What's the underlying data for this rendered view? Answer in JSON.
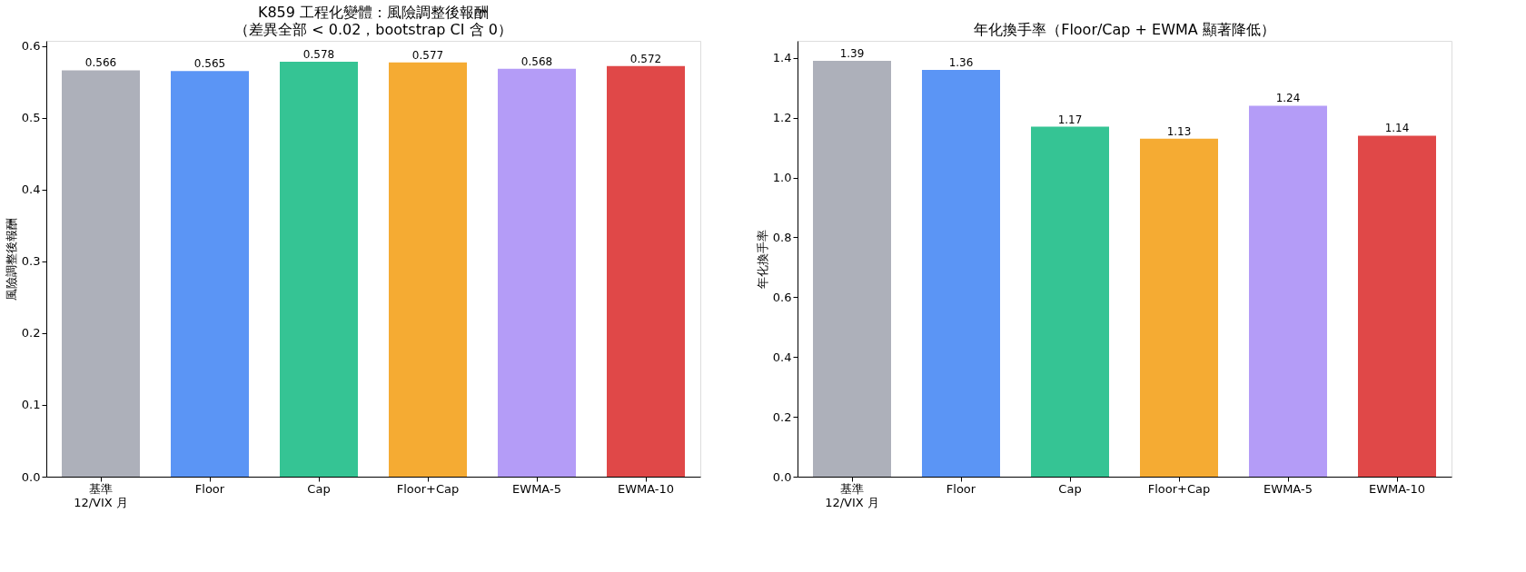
{
  "chart_data": [
    {
      "type": "bar",
      "title": "K859 工程化變體：風險調整後報酬",
      "subtitle": "（差異全部 < 0.02，bootstrap CI 含 0）",
      "ylabel": "風險調整後報酬",
      "categories": [
        "基準\n12/VIX 月",
        "Floor",
        "Cap",
        "Floor+Cap",
        "EWMA-5",
        "EWMA-10"
      ],
      "values": [
        0.566,
        0.565,
        0.578,
        0.577,
        0.568,
        0.572
      ],
      "colors": [
        "#adb0ba",
        "#5b95f5",
        "#35c494",
        "#f5ab33",
        "#b49cf7",
        "#e04848"
      ],
      "ylim": [
        0,
        0.607
      ],
      "yticks": [
        {
          "value": 0,
          "label": "0.0"
        },
        {
          "value": 0.1,
          "label": "0.1"
        },
        {
          "value": 0.2,
          "label": "0.2"
        },
        {
          "value": 0.3,
          "label": "0.3"
        },
        {
          "value": 0.4,
          "label": "0.4"
        },
        {
          "value": 0.5,
          "label": "0.5"
        },
        {
          "value": 0.6,
          "label": "0.6"
        }
      ],
      "data_labels": true,
      "grid": false
    },
    {
      "type": "bar",
      "title": "年化換手率（Floor/Cap + EWMA 顯著降低）",
      "ylabel": "年化換手率",
      "categories": [
        "基準\n12/VIX 月",
        "Floor",
        "Cap",
        "Floor+Cap",
        "EWMA-5",
        "EWMA-10"
      ],
      "values": [
        1.39,
        1.36,
        1.17,
        1.13,
        1.24,
        1.14
      ],
      "colors": [
        "#adb0ba",
        "#5b95f5",
        "#35c494",
        "#f5ab33",
        "#b49cf7",
        "#e04848"
      ],
      "ylim": [
        0,
        1.457
      ],
      "yticks": [
        {
          "value": 0,
          "label": "0.0"
        },
        0.2,
        0.4,
        0.6,
        0.8,
        {
          "value": 1,
          "label": "1.0"
        },
        1.2,
        1.4
      ],
      "data_labels": true,
      "grid": false
    }
  ]
}
